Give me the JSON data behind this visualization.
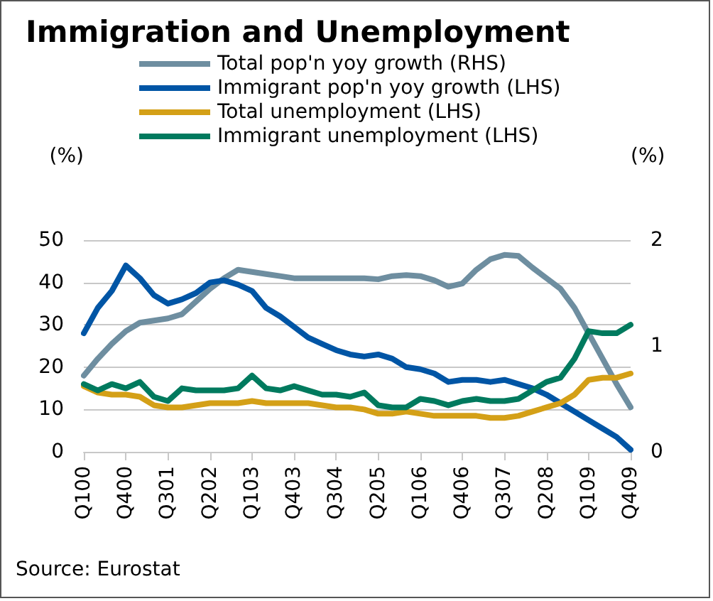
{
  "chart_data": {
    "type": "line",
    "title": "Immigration and Unemployment",
    "ylabel": "(%)",
    "y2label": "(%)",
    "categories": [
      "Q100",
      null,
      null,
      "Q400",
      null,
      null,
      "Q301",
      null,
      null,
      "Q202",
      null,
      null,
      "Q103",
      null,
      null,
      "Q403",
      null,
      null,
      "Q304",
      null,
      null,
      "Q205",
      null,
      null,
      "Q106",
      null,
      null,
      "Q406",
      null,
      null,
      "Q307",
      null,
      null,
      "Q208",
      null,
      null,
      "Q109",
      null,
      null,
      "Q409"
    ],
    "series": [
      {
        "name": "Total pop'n yoy growth (RHS)",
        "color": "#6e8ea0",
        "axis": "y2",
        "values": [
          0.72,
          0.88,
          1.02,
          1.14,
          1.22,
          1.24,
          1.26,
          1.3,
          1.42,
          1.54,
          1.64,
          1.72,
          1.7,
          1.68,
          1.66,
          1.64,
          1.64,
          1.64,
          1.64,
          1.64,
          1.64,
          1.63,
          1.66,
          1.67,
          1.66,
          1.62,
          1.56,
          1.59,
          1.72,
          1.82,
          1.86,
          1.85,
          1.74,
          1.64,
          1.54,
          1.36,
          1.12,
          0.88,
          0.64,
          0.42
        ]
      },
      {
        "name": "Immigrant pop'n yoy growth (LHS)",
        "color": "#0055a5",
        "values": [
          28,
          34,
          38,
          44,
          41,
          37,
          35,
          36,
          37.5,
          40,
          40.5,
          39.5,
          38,
          34,
          32,
          29.5,
          27,
          25.5,
          24,
          23,
          22.5,
          23,
          22,
          20,
          19.5,
          18.5,
          16.5,
          17,
          17,
          16.5,
          17,
          16,
          15,
          13.5,
          11.5,
          9.5,
          7.5,
          5.5,
          3.5,
          0.5
        ]
      },
      {
        "name": "Total unemployment (LHS)",
        "color": "#d4a017",
        "values": [
          15.5,
          14,
          13.5,
          13.5,
          13,
          11,
          10.5,
          10.5,
          11,
          11.5,
          11.5,
          11.5,
          12,
          11.5,
          11.5,
          11.5,
          11.5,
          11,
          10.5,
          10.5,
          10,
          9,
          9,
          9.5,
          9,
          8.5,
          8.5,
          8.5,
          8.5,
          8,
          8,
          8.5,
          9.5,
          10.5,
          11.5,
          13.5,
          17,
          17.5,
          17.5,
          18.5
        ]
      },
      {
        "name": "Immigrant unemployment (LHS)",
        "color": "#007a5e",
        "values": [
          16,
          14.5,
          16,
          15,
          16.5,
          13,
          12,
          15,
          14.5,
          14.5,
          14.5,
          15,
          18,
          15,
          14.5,
          15.5,
          14.5,
          13.5,
          13.5,
          13,
          14,
          11,
          10.5,
          10.5,
          12.5,
          12,
          11,
          12,
          12.5,
          12,
          12,
          12.5,
          14.5,
          16.5,
          17.5,
          22,
          28.5,
          28,
          28,
          30
        ]
      }
    ],
    "ylim": [
      0,
      50
    ],
    "yticks": [
      0,
      10,
      20,
      30,
      40,
      50
    ],
    "y2lim": [
      0,
      2
    ],
    "y2ticks": [
      0,
      1,
      2
    ],
    "grid": "y",
    "legend": "top",
    "marker": "none",
    "line_style": "solid",
    "annotations": [
      "Source: Eurostat"
    ]
  }
}
